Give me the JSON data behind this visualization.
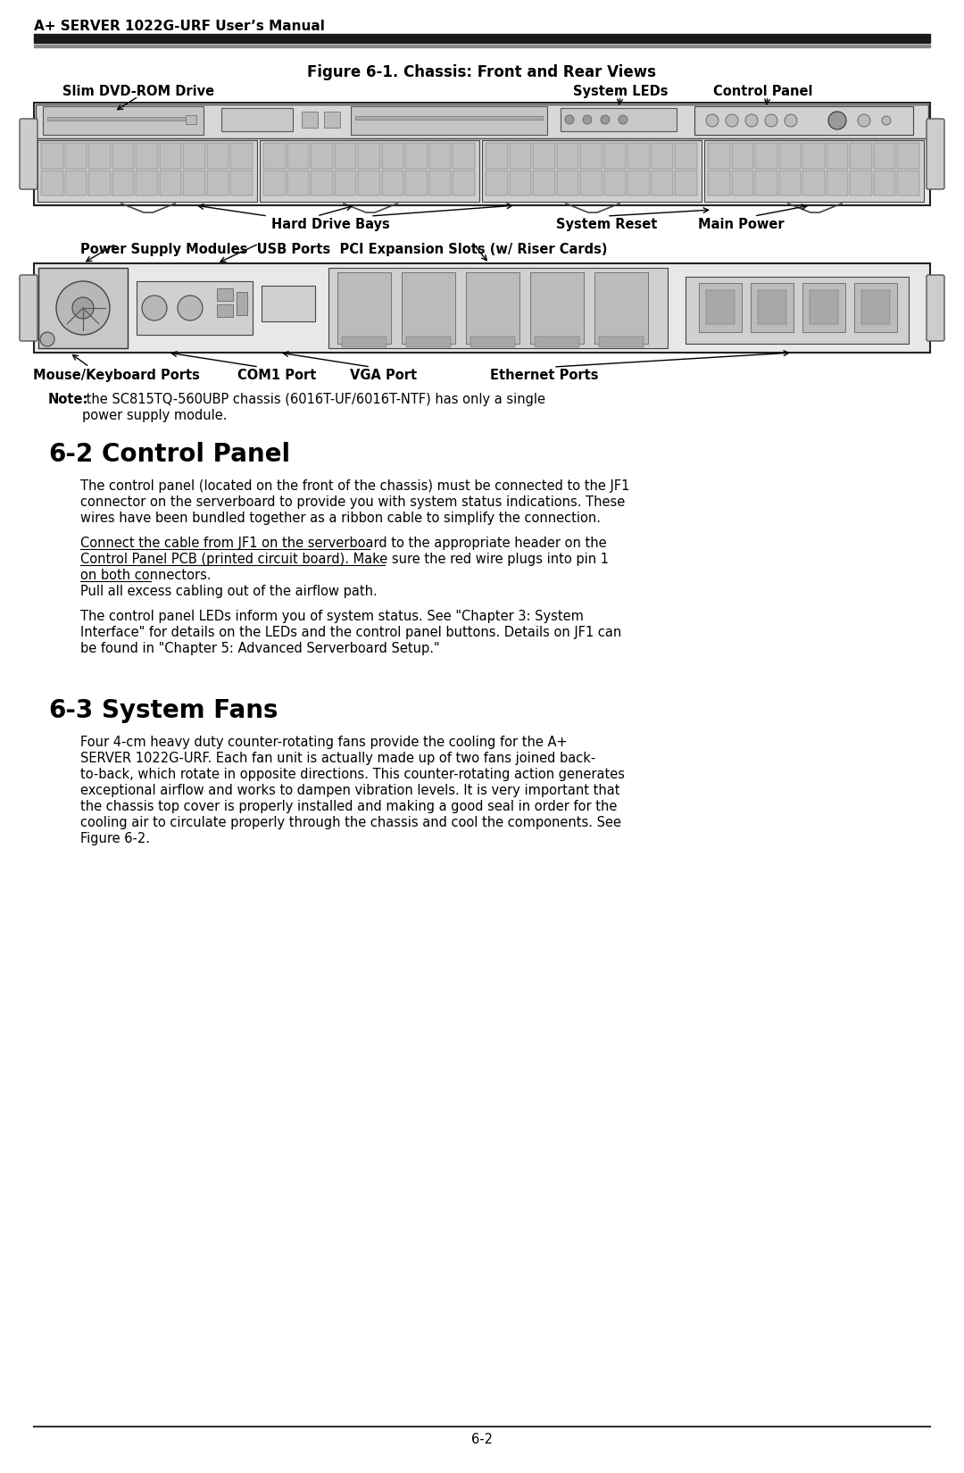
{
  "page_bg": "#ffffff",
  "header_text": "A+ SERVER 1022G-URF User’s Manual",
  "figure_title": "Figure 6-1. Chassis: Front and Rear Views",
  "front_label_dvd": "Slim DVD-ROM Drive",
  "front_label_leds": "System LEDs",
  "front_label_cp": "Control Panel",
  "front_label_hdb": "Hard Drive Bays",
  "front_label_sr": "System Reset",
  "front_label_mp": "Main Power",
  "rear_label_top": "Power Supply Modules  USB Ports  PCI Expansion Slots (w/ Riser Cards)",
  "rear_label_mkb": "Mouse/Keyboard Ports",
  "rear_label_com": "COM1 Port",
  "rear_label_vga": "VGA Port",
  "rear_label_eth": "Ethernet Ports",
  "note_bold": "Note:",
  "note_rest": " the SC815TQ-560UBP chassis (6016T-UF/6016T-NTF) has only a single",
  "note_line2": "power supply module.",
  "sec22_num": "6-2",
  "sec22_title": "Control Panel",
  "sec22_p1_lines": [
    "The control panel (located on the front of the chassis) must be connected to the JF1",
    "connector on the serverboard to provide you with system status indications. These",
    "wires have been bundled together as a ribbon cable to simplify the connection."
  ],
  "sec22_p2_underline_lines": [
    "Connect the cable from JF1 on the serverboard to the appropriate header on the",
    "Control Panel PCB (printed circuit board). Make sure the red wire plugs into pin 1",
    "on both connectors."
  ],
  "sec22_p2_normal": " Pull all excess cabling out of the airflow path.",
  "sec22_p3_lines": [
    "The control panel LEDs inform you of system status. See \"Chapter 3: System",
    "Interface\" for details on the LEDs and the control panel buttons. Details on JF1 can",
    "be found in \"Chapter 5: Advanced Serverboard Setup.\""
  ],
  "sec23_num": "6-3",
  "sec23_title": "System Fans",
  "sec23_p1_lines": [
    "Four 4-cm heavy duty counter-rotating fans provide the cooling for the A+",
    "SERVER 1022G-URF. Each fan unit is actually made up of two fans joined back-",
    "to-back, which rotate in opposite directions. This counter-rotating action generates",
    "exceptional airflow and works to dampen vibration levels. It is very important that",
    "the chassis top cover is properly installed and making a good seal in order for the",
    "cooling air to circulate properly through the chassis and cool the components. See",
    "Figure 6-2."
  ],
  "footer_text": "6-2",
  "body_fs": 10.5,
  "label_fs": 10.5,
  "section_num_fs": 20,
  "header_fs": 11,
  "figure_title_fs": 12
}
